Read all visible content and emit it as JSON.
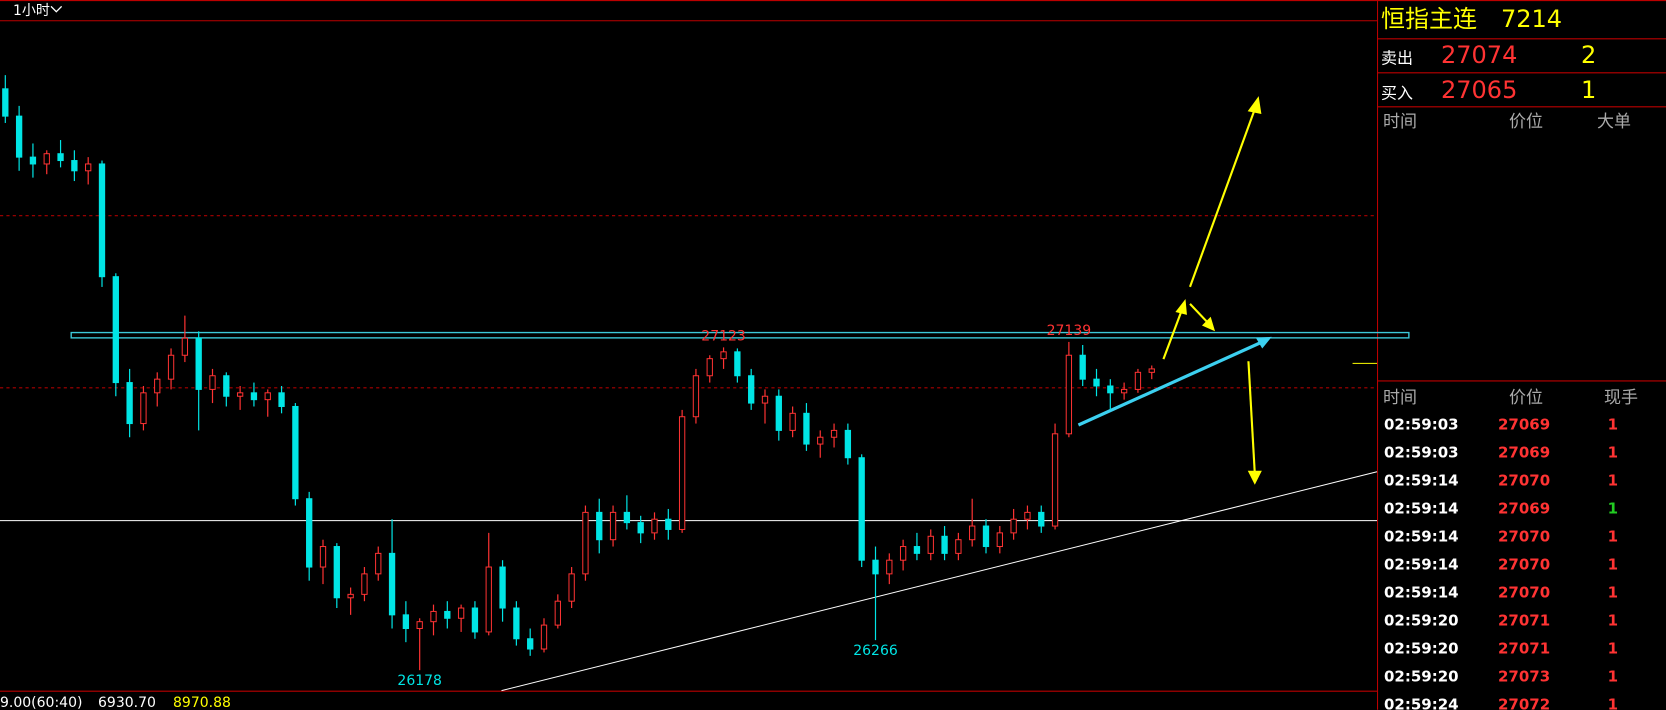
{
  "toolbar": {
    "period": "1小时"
  },
  "quote": {
    "name": "恒指主连",
    "last": "7214",
    "ask_label": "卖出",
    "ask": "27074",
    "ask_vol": "2",
    "bid_label": "买入",
    "bid": "27065",
    "bid_vol": "1"
  },
  "big_orders": {
    "headers": [
      "时间",
      "价位",
      "大单"
    ]
  },
  "trades": {
    "headers": [
      "时间",
      "价位",
      "现手"
    ],
    "rows": [
      [
        "02:59:03",
        "27069",
        "1"
      ],
      [
        "02:59:03",
        "27069",
        "1"
      ],
      [
        "02:59:14",
        "27070",
        "1"
      ],
      [
        "02:59:14",
        "27069",
        "1"
      ],
      [
        "02:59:14",
        "27070",
        "1"
      ],
      [
        "02:59:14",
        "27070",
        "1"
      ],
      [
        "02:59:14",
        "27070",
        "1"
      ],
      [
        "02:59:20",
        "27071",
        "1"
      ],
      [
        "02:59:20",
        "27071",
        "1"
      ],
      [
        "02:59:20",
        "27073",
        "1"
      ],
      [
        "02:59:24",
        "27072",
        "1"
      ]
    ],
    "vol_colors": [
      "#ff3333",
      "#ff3333",
      "#ff3333",
      "#22cc22",
      "#ff3333",
      "#ff3333",
      "#ff3333",
      "#ff3333",
      "#ff3333",
      "#ff3333",
      "#ff3333"
    ]
  },
  "chart": {
    "type": "candlestick",
    "ylim": [
      26120,
      28140
    ],
    "up_color": "#ff3333",
    "down_color": "#00e5e5",
    "labels": [
      27123,
      27139,
      26178,
      26266
    ],
    "candles": [
      [
        27880,
        27920,
        27780,
        27800
      ],
      [
        27800,
        27830,
        27640,
        27680
      ],
      [
        27680,
        27720,
        27620,
        27660
      ],
      [
        27660,
        27700,
        27630,
        27690
      ],
      [
        27690,
        27730,
        27650,
        27670
      ],
      [
        27670,
        27700,
        27610,
        27640
      ],
      [
        27640,
        27680,
        27600,
        27660
      ],
      [
        27660,
        27670,
        27300,
        27330
      ],
      [
        27330,
        27340,
        26980,
        27020
      ],
      [
        27020,
        27060,
        26860,
        26900
      ],
      [
        26900,
        27010,
        26880,
        26990
      ],
      [
        26990,
        27050,
        26950,
        27030
      ],
      [
        27030,
        27120,
        27000,
        27100
      ],
      [
        27100,
        27216,
        27080,
        27150
      ],
      [
        27150,
        27170,
        26880,
        27000
      ],
      [
        27000,
        27060,
        26960,
        27040
      ],
      [
        27040,
        27050,
        26950,
        26980
      ],
      [
        26980,
        27010,
        26940,
        26990
      ],
      [
        26990,
        27020,
        26950,
        26970
      ],
      [
        26970,
        27000,
        26920,
        26990
      ],
      [
        26990,
        27010,
        26930,
        26950
      ],
      [
        26950,
        26960,
        26660,
        26680
      ],
      [
        26680,
        26700,
        26440,
        26480
      ],
      [
        26480,
        26560,
        26430,
        26540
      ],
      [
        26540,
        26550,
        26360,
        26390
      ],
      [
        26390,
        26420,
        26340,
        26400
      ],
      [
        26400,
        26480,
        26380,
        26460
      ],
      [
        26460,
        26540,
        26440,
        26520
      ],
      [
        26520,
        26620,
        26300,
        26340
      ],
      [
        26340,
        26380,
        26260,
        26300
      ],
      [
        26300,
        26330,
        26178,
        26320
      ],
      [
        26320,
        26370,
        26280,
        26350
      ],
      [
        26350,
        26380,
        26300,
        26330
      ],
      [
        26330,
        26370,
        26290,
        26360
      ],
      [
        26360,
        26380,
        26270,
        26290
      ],
      [
        26290,
        26580,
        26280,
        26480
      ],
      [
        26480,
        26500,
        26320,
        26360
      ],
      [
        26360,
        26380,
        26250,
        26270
      ],
      [
        26270,
        26300,
        26220,
        26240
      ],
      [
        26240,
        26330,
        26230,
        26310
      ],
      [
        26310,
        26400,
        26300,
        26380
      ],
      [
        26380,
        26480,
        26360,
        26460
      ],
      [
        26460,
        26660,
        26440,
        26640
      ],
      [
        26640,
        26680,
        26520,
        26560
      ],
      [
        26560,
        26660,
        26540,
        26640
      ],
      [
        26640,
        26690,
        26590,
        26610
      ],
      [
        26610,
        26630,
        26550,
        26580
      ],
      [
        26580,
        26640,
        26560,
        26620
      ],
      [
        26620,
        26650,
        26560,
        26590
      ],
      [
        26590,
        26940,
        26580,
        26920
      ],
      [
        26920,
        27060,
        26900,
        27040
      ],
      [
        27040,
        27100,
        27020,
        27090
      ],
      [
        27090,
        27123,
        27060,
        27110
      ],
      [
        27110,
        27120,
        27020,
        27040
      ],
      [
        27040,
        27060,
        26940,
        26960
      ],
      [
        26960,
        27000,
        26900,
        26980
      ],
      [
        26980,
        27000,
        26850,
        26880
      ],
      [
        26880,
        26950,
        26860,
        26930
      ],
      [
        26930,
        26960,
        26820,
        26840
      ],
      [
        26840,
        26880,
        26800,
        26860
      ],
      [
        26860,
        26900,
        26830,
        26880
      ],
      [
        26880,
        26900,
        26780,
        26800
      ],
      [
        26800,
        26810,
        26480,
        26500
      ],
      [
        26500,
        26540,
        26266,
        26460
      ],
      [
        26460,
        26520,
        26430,
        26500
      ],
      [
        26500,
        26560,
        26470,
        26540
      ],
      [
        26540,
        26580,
        26500,
        26520
      ],
      [
        26520,
        26590,
        26500,
        26570
      ],
      [
        26570,
        26600,
        26500,
        26520
      ],
      [
        26520,
        26580,
        26500,
        26560
      ],
      [
        26560,
        26680,
        26540,
        26600
      ],
      [
        26600,
        26620,
        26520,
        26540
      ],
      [
        26540,
        26600,
        26520,
        26580
      ],
      [
        26580,
        26650,
        26560,
        26620
      ],
      [
        26620,
        26660,
        26590,
        26640
      ],
      [
        26640,
        26660,
        26580,
        26600
      ],
      [
        26600,
        26900,
        26590,
        26870
      ],
      [
        26870,
        27139,
        26860,
        27100
      ],
      [
        27100,
        27130,
        27010,
        27030
      ],
      [
        27030,
        27060,
        26980,
        27010
      ],
      [
        27010,
        27030,
        26940,
        26990
      ],
      [
        26990,
        27020,
        26970,
        27000
      ],
      [
        27000,
        27060,
        26990,
        27050
      ],
      [
        27050,
        27070,
        27030,
        27060
      ]
    ]
  },
  "footer": {
    "ratio": "9.00(60:40)",
    "value_a": "6930.70",
    "value_b": "8970.88"
  }
}
